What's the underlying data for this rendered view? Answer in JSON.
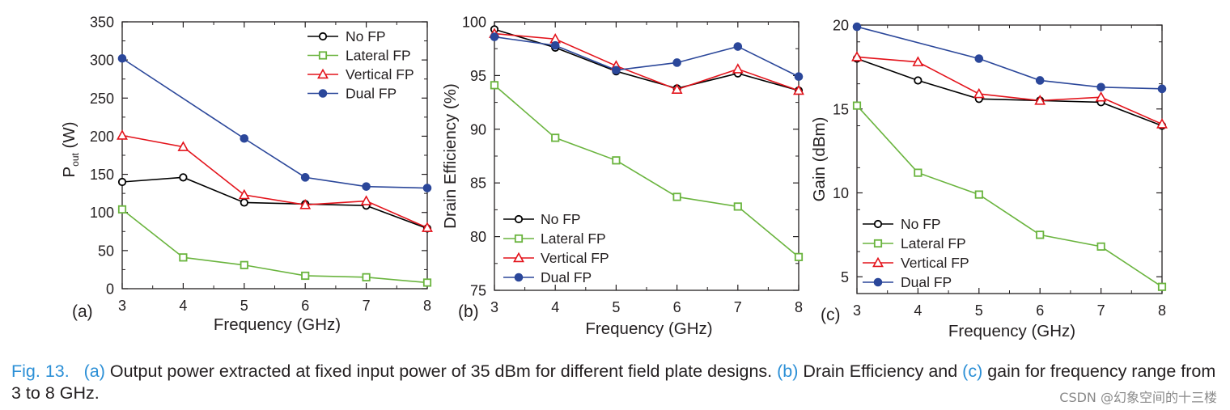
{
  "chart_data": [
    {
      "type": "line",
      "panel_label": "(a)",
      "xlabel": "Frequency (GHz)",
      "ylabel": "P",
      "ylabel_sub": "out",
      "ylabel_suffix": " (W)",
      "x": [
        3,
        4,
        5,
        6,
        7,
        8
      ],
      "xlim": [
        3,
        8
      ],
      "ylim": [
        0,
        350
      ],
      "xticks": [
        3,
        4,
        5,
        6,
        7,
        8
      ],
      "yticks": [
        0,
        50,
        100,
        150,
        200,
        250,
        300,
        350
      ],
      "legend_position": "top-right",
      "series": [
        {
          "name": "No FP",
          "marker": "circle-open",
          "color": "#000000",
          "values": [
            140,
            146,
            113,
            111,
            109,
            79
          ]
        },
        {
          "name": "Lateral FP",
          "marker": "square-open",
          "color": "#6ab43e",
          "values": [
            104,
            41,
            31,
            17,
            15,
            8
          ]
        },
        {
          "name": "Vertical FP",
          "marker": "triangle-open",
          "color": "#e3131b",
          "values": [
            201,
            186,
            123,
            110,
            115,
            80
          ]
        },
        {
          "name": "Dual FP",
          "marker": "circle-filled",
          "color": "#2b479a",
          "values": [
            302,
            null,
            197,
            146,
            134,
            132
          ]
        }
      ]
    },
    {
      "type": "line",
      "panel_label": "(b)",
      "xlabel": "Frequency (GHz)",
      "ylabel": "Drain Efficiency (%)",
      "x": [
        3,
        4,
        5,
        6,
        7,
        8
      ],
      "xlim": [
        3,
        8
      ],
      "ylim": [
        75,
        100
      ],
      "xticks": [
        3,
        4,
        5,
        6,
        7,
        8
      ],
      "yticks": [
        75,
        80,
        85,
        90,
        95,
        100
      ],
      "legend_position": "bottom-left",
      "series": [
        {
          "name": "No FP",
          "marker": "circle-open",
          "color": "#000000",
          "values": [
            99.3,
            97.6,
            95.4,
            93.8,
            95.2,
            93.6
          ]
        },
        {
          "name": "Lateral FP",
          "marker": "square-open",
          "color": "#6ab43e",
          "values": [
            94.1,
            89.2,
            87.1,
            83.7,
            82.8,
            78.1
          ]
        },
        {
          "name": "Vertical FP",
          "marker": "triangle-open",
          "color": "#e3131b",
          "values": [
            98.9,
            98.4,
            95.9,
            93.7,
            95.6,
            93.6
          ]
        },
        {
          "name": "Dual FP",
          "marker": "circle-filled",
          "color": "#2b479a",
          "values": [
            98.6,
            97.8,
            95.5,
            96.2,
            97.7,
            94.9
          ]
        }
      ]
    },
    {
      "type": "line",
      "panel_label": "(c)",
      "xlabel": "Frequency (GHz)",
      "ylabel": "Gain (dBm)",
      "x": [
        3,
        4,
        5,
        6,
        7,
        8
      ],
      "xlim": [
        3,
        8
      ],
      "ylim": [
        4,
        20
      ],
      "xticks": [
        3,
        4,
        5,
        6,
        7,
        8
      ],
      "yticks": [
        5,
        10,
        15,
        20
      ],
      "legend_position": "bottom-left",
      "series": [
        {
          "name": "No FP",
          "marker": "circle-open",
          "color": "#000000",
          "values": [
            18.0,
            16.7,
            15.6,
            15.5,
            15.4,
            14.0
          ]
        },
        {
          "name": "Lateral FP",
          "marker": "square-open",
          "color": "#6ab43e",
          "values": [
            15.2,
            11.2,
            9.9,
            7.5,
            6.8,
            4.4
          ]
        },
        {
          "name": "Vertical FP",
          "marker": "triangle-open",
          "color": "#e3131b",
          "values": [
            18.1,
            17.8,
            15.9,
            15.5,
            15.7,
            14.1
          ]
        },
        {
          "name": "Dual FP",
          "marker": "circle-filled",
          "color": "#2b479a",
          "values": [
            19.9,
            null,
            18.0,
            16.7,
            16.3,
            16.2
          ]
        }
      ]
    }
  ],
  "caption": {
    "fig_label": "Fig. 13.",
    "part_a": "(a)",
    "text_a": " Output power extracted at fixed input power of 35 dBm for different field plate designs. ",
    "part_b": "(b)",
    "text_b": " Drain Efficiency and ",
    "part_c": "(c)",
    "text_c": " gain for frequency range from 3 to 8 GHz."
  },
  "watermark": "CSDN @幻象空间的十三楼"
}
